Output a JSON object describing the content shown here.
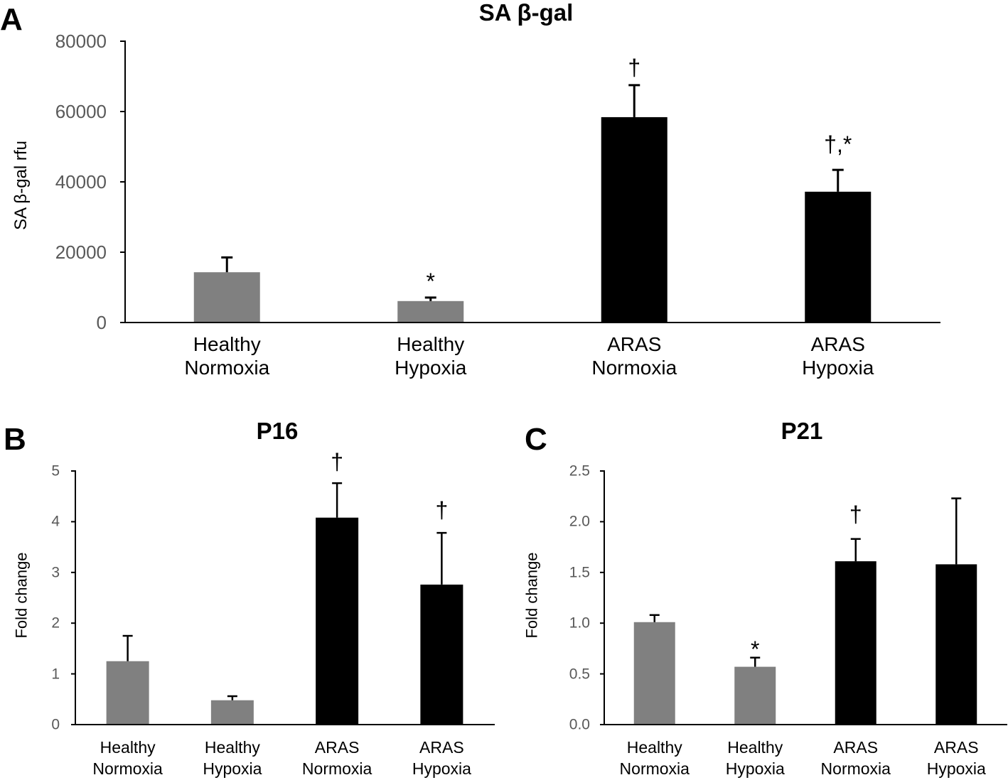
{
  "style": {
    "axis_color": "#000000",
    "tick_label_color": "#595959",
    "text_color": "#000000"
  },
  "chart_data": [
    {
      "panel_label": "A",
      "type": "bar",
      "title": "SA β-gal",
      "xlabel": "",
      "ylabel": "SA β-gal rfu",
      "ylim": [
        0,
        80000
      ],
      "yticks": [
        0,
        20000,
        40000,
        60000,
        80000
      ],
      "ytick_labels": [
        "0",
        "20000",
        "40000",
        "60000",
        "80000"
      ],
      "grid": false,
      "categories": [
        "Healthy Normoxia",
        "Healthy Hypoxia",
        "ARAS Normoxia",
        "ARAS Hypoxia"
      ],
      "values": [
        14300,
        6100,
        58400,
        37200
      ],
      "errors": [
        4200,
        1000,
        9100,
        6200
      ],
      "annotations": [
        null,
        "*",
        "†",
        "†,*"
      ],
      "bar_colors": [
        "#808080",
        "#808080",
        "#000000",
        "#000000"
      ]
    },
    {
      "panel_label": "B",
      "type": "bar",
      "title": "P16",
      "xlabel": "",
      "ylabel": "Fold change",
      "ylim": [
        0,
        5
      ],
      "yticks": [
        0,
        1,
        2,
        3,
        4,
        5
      ],
      "ytick_labels": [
        "0",
        "1",
        "2",
        "3",
        "4",
        "5"
      ],
      "grid": false,
      "categories": [
        "Healthy Normoxia",
        "Healthy Hypoxia",
        "ARAS Normoxia",
        "ARAS Hypoxia"
      ],
      "values": [
        1.25,
        0.48,
        4.08,
        2.76
      ],
      "errors": [
        0.5,
        0.08,
        0.68,
        1.02
      ],
      "annotations": [
        null,
        null,
        "†",
        "†"
      ],
      "bar_colors": [
        "#808080",
        "#808080",
        "#000000",
        "#000000"
      ]
    },
    {
      "panel_label": "C",
      "type": "bar",
      "title": "P21",
      "xlabel": "",
      "ylabel": "Fold change",
      "ylim": [
        0,
        2.5
      ],
      "yticks": [
        0,
        0.5,
        1.0,
        1.5,
        2.0,
        2.5
      ],
      "ytick_labels": [
        "0.0",
        "0.5",
        "1.0",
        "1.5",
        "2.0",
        "2.5"
      ],
      "grid": false,
      "categories": [
        "Healthy Normoxia",
        "Healthy Hypoxia",
        "ARAS Normoxia",
        "ARAS Hypoxia"
      ],
      "values": [
        1.01,
        0.57,
        1.61,
        1.58
      ],
      "errors": [
        0.07,
        0.09,
        0.22,
        0.65
      ],
      "annotations": [
        null,
        "*",
        "†",
        null
      ],
      "bar_colors": [
        "#808080",
        "#808080",
        "#000000",
        "#000000"
      ]
    }
  ]
}
